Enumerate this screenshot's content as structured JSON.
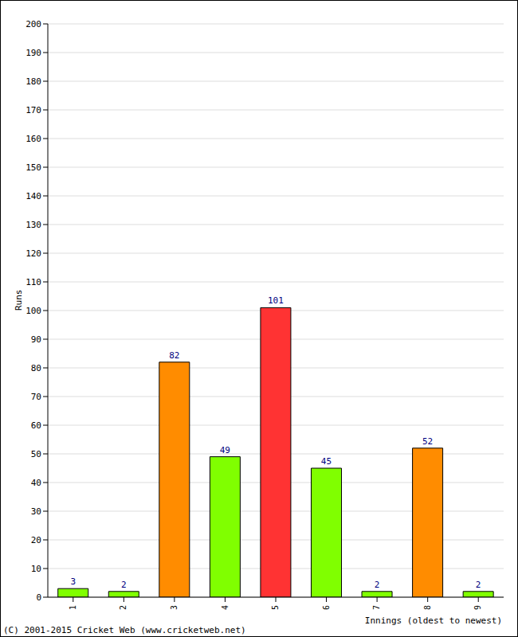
{
  "chart_data": {
    "type": "bar",
    "categories": [
      "1",
      "2",
      "3",
      "4",
      "5",
      "6",
      "7",
      "8",
      "9"
    ],
    "values": [
      3,
      2,
      82,
      49,
      101,
      45,
      2,
      52,
      2
    ],
    "colors": [
      "#80ff00",
      "#80ff00",
      "#ff8c00",
      "#80ff00",
      "#ff3333",
      "#80ff00",
      "#80ff00",
      "#ff8c00",
      "#80ff00"
    ],
    "x_label": "Innings (oldest to newest)",
    "y_label": "Runs",
    "ylim": [
      0,
      200
    ],
    "yticks": [
      0,
      10,
      20,
      30,
      40,
      50,
      60,
      70,
      80,
      90,
      100,
      110,
      120,
      130,
      140,
      150,
      160,
      170,
      180,
      190,
      200
    ],
    "grid": true,
    "data_labels": true,
    "annotation": "(C) 2001-2015 Cricket Web (www.cricketweb.net)"
  }
}
